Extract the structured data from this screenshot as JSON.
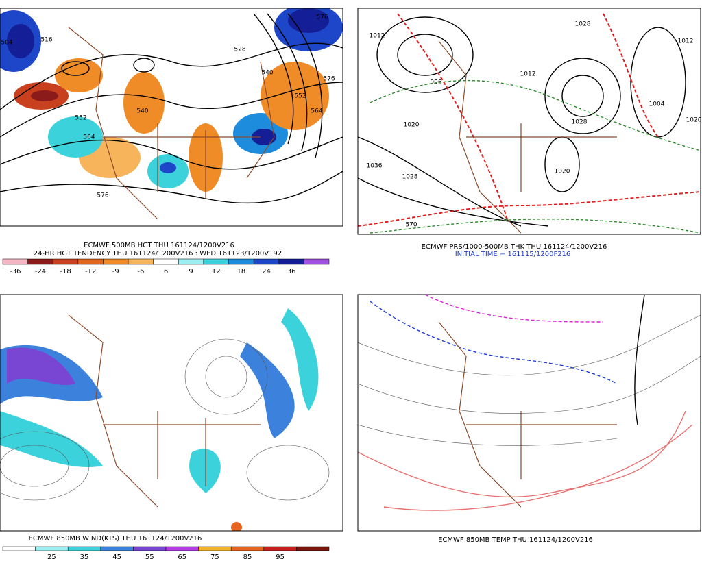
{
  "panels": [
    {
      "captions": [
        "ECMWF 500MB HGT THU 161124/1200V216",
        "24-HR HGT TENDENCY THU 161124/1200V216 : WED 161123/1200V192"
      ],
      "contour_labels": [
        "504",
        "516",
        "528",
        "540",
        "552",
        "564",
        "576",
        "540",
        "552",
        "564",
        "576",
        "576"
      ],
      "colorbar": {
        "colors": [
          "#f4b6c2",
          "#8b1a1a",
          "#c8401e",
          "#e0661e",
          "#f08c28",
          "#f8b45a",
          "#ffffff",
          "#9ceef0",
          "#3cd2dc",
          "#1e8cdc",
          "#1e46c8",
          "#141e96",
          "#a050e0"
        ],
        "ticks": [
          -36,
          -24,
          -18,
          -12,
          -9,
          -6,
          6,
          9,
          12,
          18,
          24,
          36
        ]
      }
    },
    {
      "captions": [
        "ECMWF PRS/1000-500MB THK THU 161124/1200V216",
        "INITIAL TIME = 161115/1200F216"
      ],
      "contour_labels": [
        "1012",
        "1028",
        "1036",
        "1028",
        "1012",
        "1020",
        "1028",
        "996",
        "1004",
        "1020",
        "1020",
        "570",
        "1012"
      ]
    },
    {
      "captions": [
        "ECMWF 850MB WIND(KTS) THU 161124/1200V216"
      ],
      "colorbar": {
        "colors": [
          "#ffffff",
          "#9ceef0",
          "#3cd2dc",
          "#3c82dc",
          "#7846d2",
          "#b43ce6",
          "#f0b428",
          "#e8641e",
          "#c81e1e",
          "#78140a"
        ],
        "ticks": [
          25,
          35,
          45,
          55,
          65,
          75,
          85,
          95
        ]
      }
    },
    {
      "captions": [
        "ECMWF 850MB TEMP THU 161124/1200V216"
      ]
    }
  ]
}
